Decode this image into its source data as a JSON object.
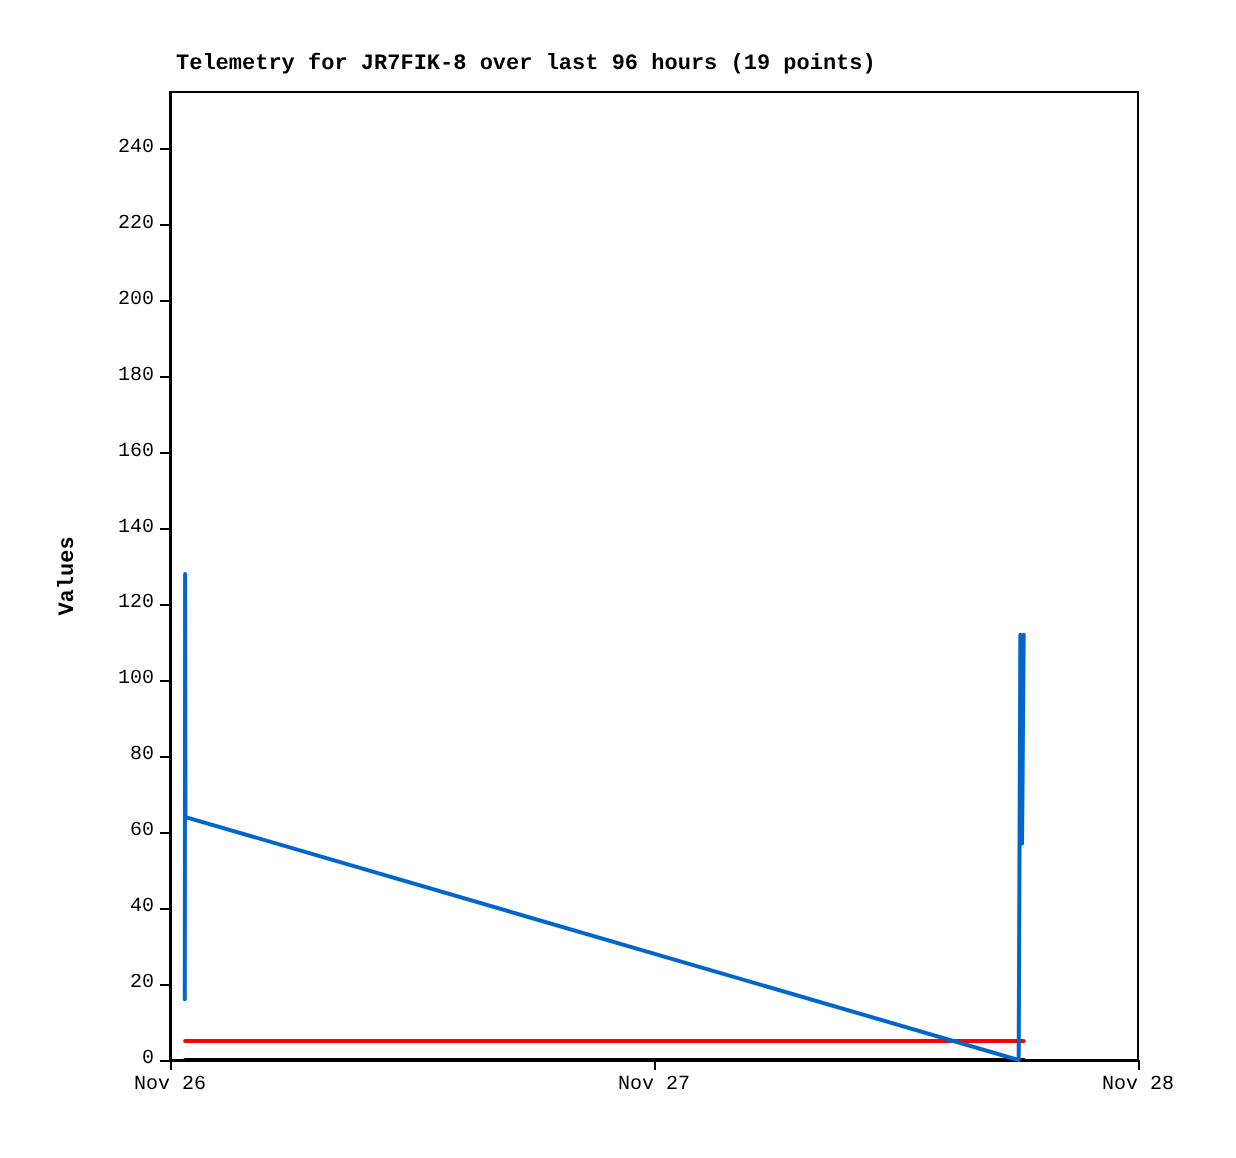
{
  "chart_data": {
    "type": "line",
    "title": "Telemetry for JR7FIK-8 over last 96 hours (19 points)",
    "ylabel": "Values",
    "xlim": [
      "--11-26",
      "--11-28"
    ],
    "xticks": [
      {
        "value": "--11-26",
        "label": "Nov 26"
      },
      {
        "value": "--11-27",
        "label": "Nov 27"
      },
      {
        "value": "--11-28",
        "label": "Nov 28"
      }
    ],
    "ylim": [
      0,
      255
    ],
    "yticks": [
      0,
      20,
      40,
      60,
      80,
      100,
      120,
      140,
      160,
      180,
      200,
      220,
      240
    ],
    "series": [
      {
        "color": "#000000",
        "x": [
          "--11-26T00:45",
          "--11-27T18:20"
        ],
        "values": [
          0,
          0
        ]
      },
      {
        "color": "#ff0000",
        "x": [
          "--11-26T00:45",
          "--11-27T18:20"
        ],
        "values": [
          5,
          5
        ]
      },
      {
        "color": "#0066cc",
        "x": [
          "--11-26T00:44",
          "--11-26T00:45",
          "--11-26T00:46",
          "--11-27T18:05",
          "--11-27T18:10",
          "--11-27T18:15",
          "--11-27T18:20"
        ],
        "values": [
          16,
          128,
          64,
          0,
          112,
          57,
          112
        ]
      }
    ],
    "grid": false,
    "marker": "none",
    "line_style": "solid"
  }
}
